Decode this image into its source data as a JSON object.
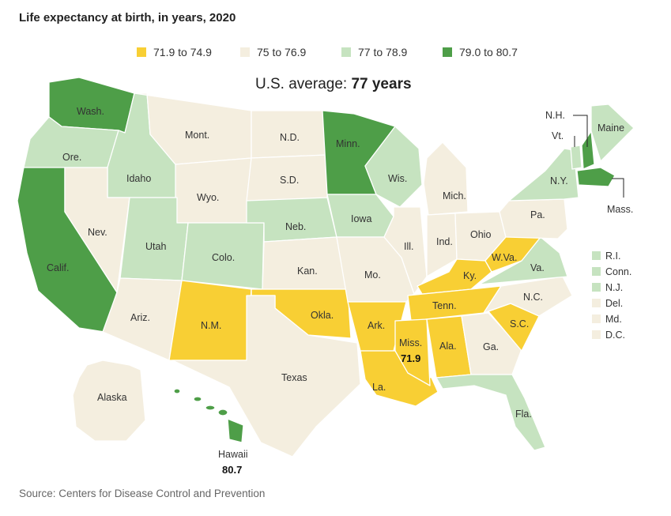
{
  "title": "Life expectancy at birth, in years, 2020",
  "legend": [
    {
      "label": "71.9 to 74.9",
      "color": "#f8cf34"
    },
    {
      "label": "75 to 76.9",
      "color": "#f4eedf"
    },
    {
      "label": "77 to 78.9",
      "color": "#c6e3c0"
    },
    {
      "label": "79.0 to 80.7",
      "color": "#4e9e48"
    }
  ],
  "average": {
    "prefix": "U.S. average: ",
    "value": "77 years"
  },
  "source": "Source: Centers for Disease Control and Prevention",
  "states": {
    "wash": {
      "label": "Wash.",
      "range": 3
    },
    "ore": {
      "label": "Ore.",
      "range": 2
    },
    "calif": {
      "label": "Calif.",
      "range": 3
    },
    "idaho": {
      "label": "Idaho",
      "range": 2
    },
    "nev": {
      "label": "Nev.",
      "range": 1
    },
    "mont": {
      "label": "Mont.",
      "range": 1
    },
    "wyo": {
      "label": "Wyo.",
      "range": 1
    },
    "utah": {
      "label": "Utah",
      "range": 2
    },
    "colo": {
      "label": "Colo.",
      "range": 2
    },
    "ariz": {
      "label": "Ariz.",
      "range": 1
    },
    "nm": {
      "label": "N.M.",
      "range": 0
    },
    "nd": {
      "label": "N.D.",
      "range": 1
    },
    "sd": {
      "label": "S.D.",
      "range": 1
    },
    "neb": {
      "label": "Neb.",
      "range": 2
    },
    "kan": {
      "label": "Kan.",
      "range": 1
    },
    "okla": {
      "label": "Okla.",
      "range": 0
    },
    "texas": {
      "label": "Texas",
      "range": 1
    },
    "minn": {
      "label": "Minn.",
      "range": 3
    },
    "iowa": {
      "label": "Iowa",
      "range": 2
    },
    "mo": {
      "label": "Mo.",
      "range": 1
    },
    "ark": {
      "label": "Ark.",
      "range": 0
    },
    "la": {
      "label": "La.",
      "range": 0
    },
    "wis": {
      "label": "Wis.",
      "range": 2
    },
    "ill": {
      "label": "Ill.",
      "range": 1
    },
    "mich": {
      "label": "Mich.",
      "range": 1
    },
    "ind": {
      "label": "Ind.",
      "range": 1
    },
    "ohio": {
      "label": "Ohio",
      "range": 1
    },
    "ky": {
      "label": "Ky.",
      "range": 0
    },
    "tenn": {
      "label": "Tenn.",
      "range": 0
    },
    "miss": {
      "label": "Miss.",
      "range": 0,
      "value": "71.9"
    },
    "ala": {
      "label": "Ala.",
      "range": 0
    },
    "ga": {
      "label": "Ga.",
      "range": 1
    },
    "fla": {
      "label": "Fla.",
      "range": 2
    },
    "sc": {
      "label": "S.C.",
      "range": 0
    },
    "nc": {
      "label": "N.C.",
      "range": 1
    },
    "va": {
      "label": "Va.",
      "range": 2
    },
    "wva": {
      "label": "W.Va.",
      "range": 0
    },
    "pa": {
      "label": "Pa.",
      "range": 1
    },
    "ny": {
      "label": "N.Y.",
      "range": 2
    },
    "vt": {
      "label": "Vt.",
      "range": 2
    },
    "nh": {
      "label": "N.H.",
      "range": 3
    },
    "maine": {
      "label": "Maine",
      "range": 2
    },
    "mass": {
      "label": "Mass.",
      "range": 3
    },
    "alaska": {
      "label": "Alaska",
      "range": 1
    },
    "hawaii": {
      "label": "Hawaii",
      "range": 3,
      "value": "80.7"
    }
  },
  "small_states": [
    {
      "label": "R.I.",
      "range": 2
    },
    {
      "label": "Conn.",
      "range": 2
    },
    {
      "label": "N.J.",
      "range": 2
    },
    {
      "label": "Del.",
      "range": 1
    },
    {
      "label": "Md.",
      "range": 1
    },
    {
      "label": "D.C.",
      "range": 1
    }
  ]
}
